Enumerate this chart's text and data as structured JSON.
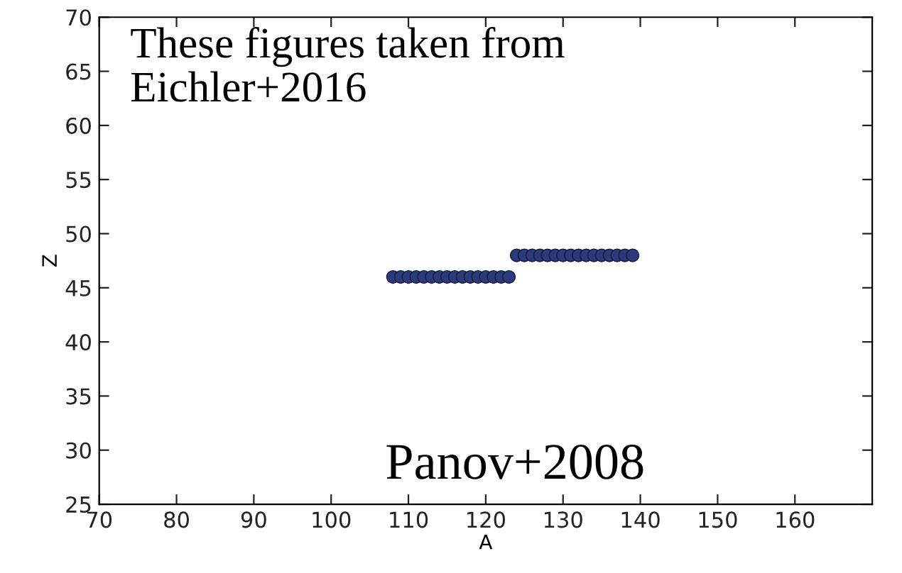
{
  "chart_data": {
    "type": "scatter",
    "xlabel": "A",
    "ylabel": "Z",
    "annotations": [
      "These figures taken from\nEichler+2016",
      "Panov+2008"
    ],
    "x": [
      108,
      109,
      110,
      111,
      112,
      113,
      114,
      115,
      116,
      117,
      118,
      119,
      120,
      121,
      122,
      123,
      124,
      125,
      126,
      127,
      128,
      129,
      130,
      131,
      132,
      133,
      134,
      135,
      136,
      137,
      138,
      139
    ],
    "series": [
      {
        "color": "#2b3a7a",
        "values": [
          46,
          46,
          46,
          46,
          46,
          46,
          46,
          46,
          46,
          46,
          46,
          46,
          46,
          46,
          46,
          46,
          48,
          48,
          48,
          48,
          48,
          48,
          48,
          48,
          48,
          48,
          48,
          48,
          48,
          48,
          48,
          48
        ]
      }
    ],
    "xlim": [
      70,
      170
    ],
    "xticks": [
      70,
      80,
      90,
      100,
      110,
      120,
      130,
      140,
      150,
      160
    ],
    "ylim": [
      25,
      70
    ],
    "yticks": [
      25,
      30,
      35,
      40,
      45,
      50,
      55,
      60,
      65,
      70
    ],
    "marker": "circle",
    "grid": false,
    "legend": false
  }
}
